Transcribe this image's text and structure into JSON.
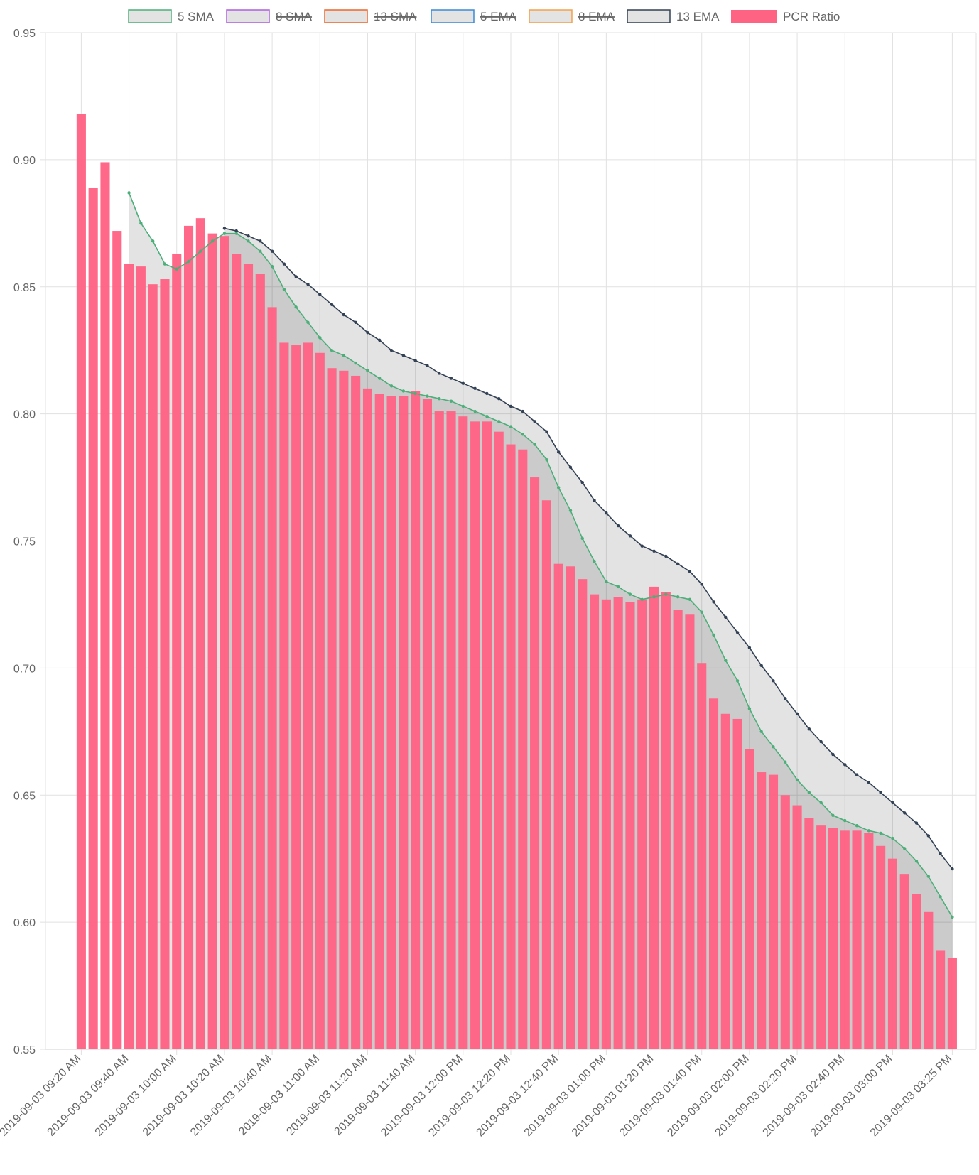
{
  "colors": {
    "pcr_bar": "#ff6384",
    "sma5": "#4caf7a",
    "sma8": "#b05de0",
    "sma13": "#f0642a",
    "ema5": "#3a8ad6",
    "ema8": "#f5a04a",
    "ema13": "#334155",
    "area_fill": "rgba(60,60,60,0.14)",
    "grid": "#e1e1e1",
    "text": "#666666"
  },
  "legend": [
    {
      "label": "5 SMA",
      "color": "#4caf7a",
      "hidden": false
    },
    {
      "label": "8 SMA",
      "color": "#b05de0",
      "hidden": true
    },
    {
      "label": "13 SMA",
      "color": "#f0642a",
      "hidden": true
    },
    {
      "label": "5 EMA",
      "color": "#3a8ad6",
      "hidden": true
    },
    {
      "label": "8 EMA",
      "color": "#f5a04a",
      "hidden": true
    },
    {
      "label": "13 EMA",
      "color": "#334155",
      "hidden": false
    },
    {
      "label": "PCR Ratio",
      "color": "#ff6384",
      "hidden": false,
      "filled": true
    }
  ],
  "chart_data": {
    "type": "bar",
    "title": "",
    "xlabel": "",
    "ylabel": "",
    "ylim": [
      0.55,
      0.95
    ],
    "yticks": [
      "0.95",
      "0.90",
      "0.85",
      "0.80",
      "0.75",
      "0.70",
      "0.65",
      "0.60",
      "0.55"
    ],
    "xtick_labels": [
      "2019-09-03 09:20 AM",
      "2019-09-03 09:40 AM",
      "2019-09-03 10:00 AM",
      "2019-09-03 10:20 AM",
      "2019-09-03 10:40 AM",
      "2019-09-03 11:00 AM",
      "2019-09-03 11:20 AM",
      "2019-09-03 11:40 AM",
      "2019-09-03 12:00 PM",
      "2019-09-03 12:20 PM",
      "2019-09-03 12:40 PM",
      "2019-09-03 01:00 PM",
      "2019-09-03 01:20 PM",
      "2019-09-03 01:40 PM",
      "2019-09-03 02:00 PM",
      "2019-09-03 02:20 PM",
      "2019-09-03 02:40 PM",
      "2019-09-03 03:00 PM",
      "2019-09-03 03:25 PM"
    ],
    "grid": true,
    "legend_position": "top",
    "series": [
      {
        "name": "PCR Ratio",
        "type": "bar",
        "values": [
          0.918,
          0.889,
          0.899,
          0.872,
          0.859,
          0.858,
          0.851,
          0.853,
          0.863,
          0.874,
          0.877,
          0.871,
          0.87,
          0.863,
          0.859,
          0.855,
          0.842,
          0.828,
          0.827,
          0.828,
          0.824,
          0.818,
          0.817,
          0.815,
          0.81,
          0.808,
          0.807,
          0.807,
          0.809,
          0.806,
          0.801,
          0.801,
          0.799,
          0.797,
          0.797,
          0.793,
          0.788,
          0.786,
          0.775,
          0.766,
          0.741,
          0.74,
          0.735,
          0.729,
          0.727,
          0.728,
          0.726,
          0.727,
          0.732,
          0.73,
          0.723,
          0.721,
          0.702,
          0.688,
          0.682,
          0.68,
          0.668,
          0.659,
          0.658,
          0.65,
          0.646,
          0.641,
          0.638,
          0.637,
          0.636,
          0.636,
          0.635,
          0.63,
          0.625,
          0.619,
          0.611,
          0.604,
          0.589,
          0.586
        ]
      },
      {
        "name": "5 SMA",
        "type": "line",
        "values": [
          null,
          null,
          null,
          null,
          0.887,
          0.875,
          0.868,
          0.859,
          0.857,
          0.86,
          0.864,
          0.868,
          0.871,
          0.871,
          0.868,
          0.864,
          0.858,
          0.849,
          0.842,
          0.836,
          0.83,
          0.825,
          0.823,
          0.82,
          0.817,
          0.814,
          0.811,
          0.809,
          0.808,
          0.807,
          0.806,
          0.805,
          0.803,
          0.801,
          0.799,
          0.797,
          0.795,
          0.792,
          0.788,
          0.782,
          0.771,
          0.762,
          0.751,
          0.742,
          0.734,
          0.732,
          0.729,
          0.727,
          0.728,
          0.729,
          0.728,
          0.727,
          0.722,
          0.713,
          0.703,
          0.695,
          0.684,
          0.675,
          0.669,
          0.663,
          0.656,
          0.651,
          0.647,
          0.642,
          0.64,
          0.638,
          0.636,
          0.635,
          0.633,
          0.629,
          0.624,
          0.618,
          0.61,
          0.602
        ]
      },
      {
        "name": "13 EMA",
        "type": "line",
        "values": [
          null,
          null,
          null,
          null,
          null,
          null,
          null,
          null,
          null,
          null,
          null,
          null,
          0.873,
          0.872,
          0.87,
          0.868,
          0.864,
          0.859,
          0.854,
          0.851,
          0.847,
          0.843,
          0.839,
          0.836,
          0.832,
          0.829,
          0.825,
          0.823,
          0.821,
          0.819,
          0.816,
          0.814,
          0.812,
          0.81,
          0.808,
          0.806,
          0.803,
          0.801,
          0.797,
          0.793,
          0.785,
          0.779,
          0.773,
          0.766,
          0.761,
          0.756,
          0.752,
          0.748,
          0.746,
          0.744,
          0.741,
          0.738,
          0.733,
          0.726,
          0.72,
          0.714,
          0.708,
          0.701,
          0.695,
          0.688,
          0.682,
          0.676,
          0.671,
          0.666,
          0.662,
          0.658,
          0.655,
          0.651,
          0.647,
          0.643,
          0.639,
          0.634,
          0.627,
          0.621
        ]
      }
    ]
  }
}
